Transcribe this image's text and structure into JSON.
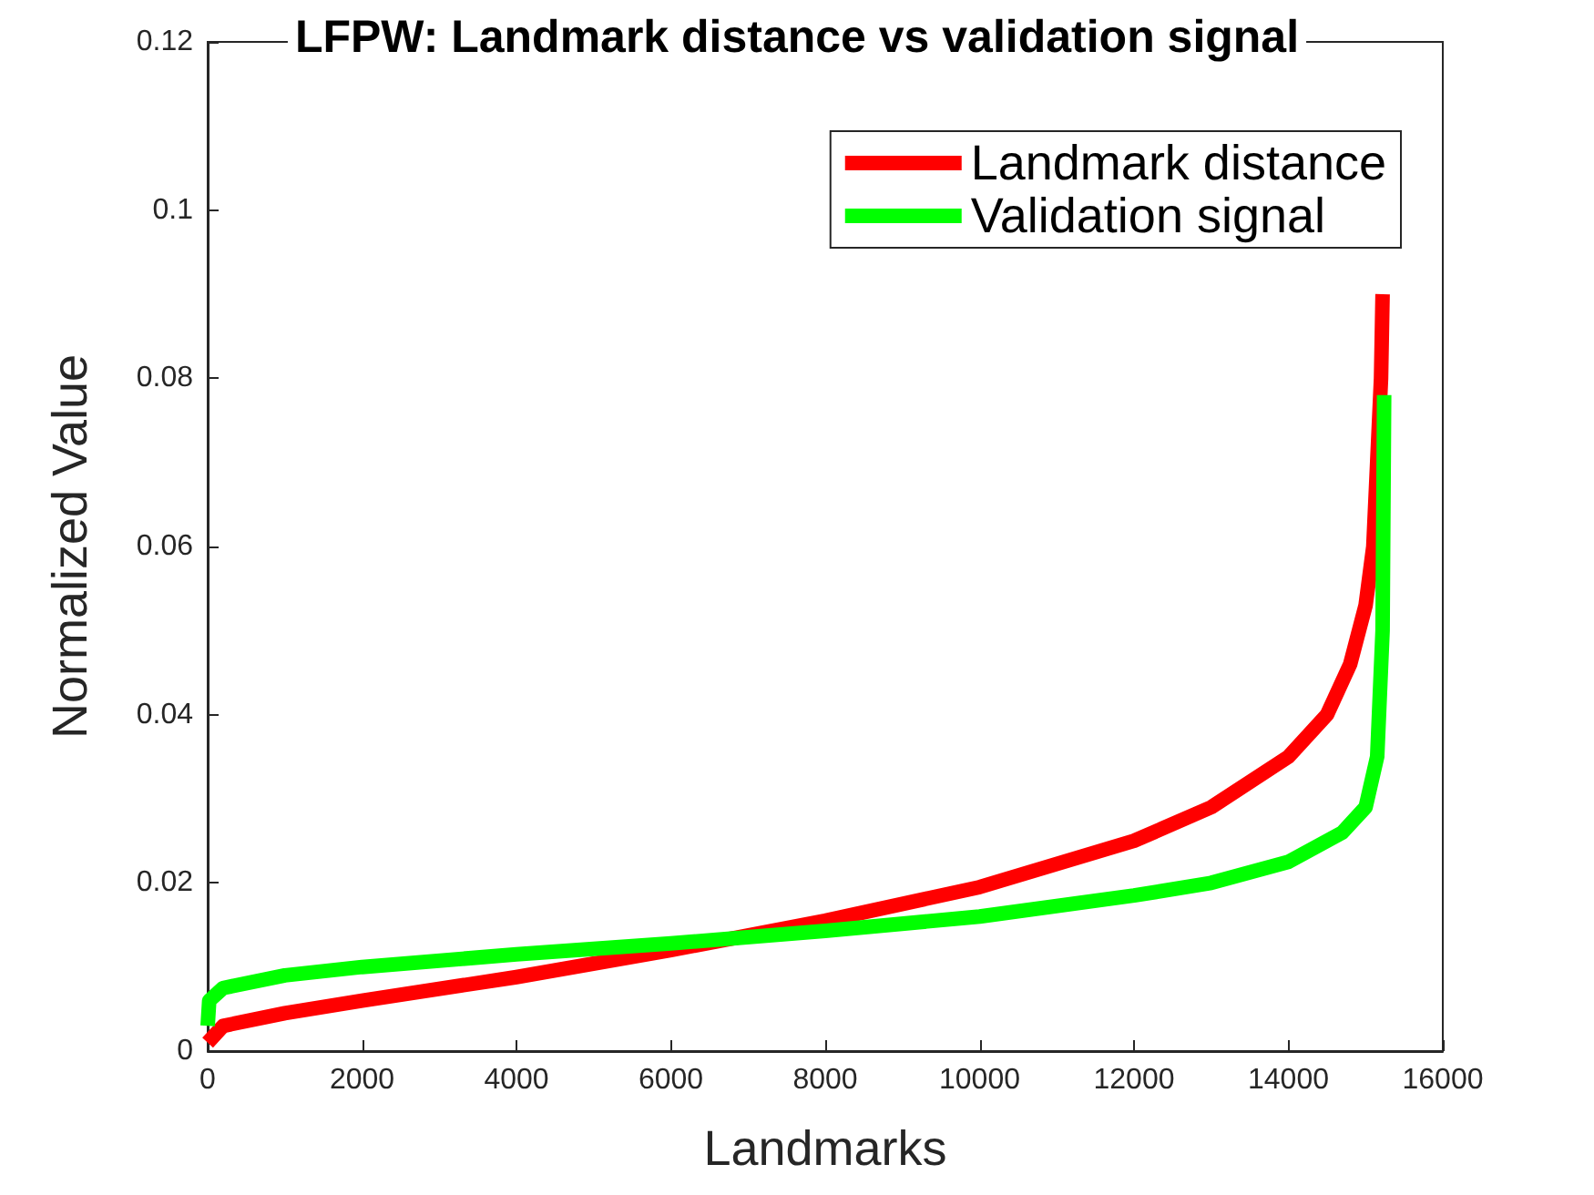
{
  "chart_data": {
    "type": "line",
    "title": "LFPW: Landmark distance vs validation signal",
    "xlabel": "Landmarks",
    "ylabel": "Normalized Value",
    "xlim": [
      0,
      16000
    ],
    "xticks": [
      0,
      2000,
      4000,
      6000,
      8000,
      10000,
      12000,
      14000,
      16000
    ],
    "ylim": [
      0,
      0.12
    ],
    "yticks": [
      0,
      0.02,
      0.04,
      0.06,
      0.08,
      0.1,
      0.12
    ],
    "grid": false,
    "legend": "top right",
    "marker": "none",
    "line_style": "solid",
    "series": [
      {
        "name": "Landmark distance",
        "color": "#ff0000",
        "x": [
          0,
          200,
          1000,
          2000,
          4000,
          6000,
          8000,
          10000,
          12000,
          13000,
          14000,
          14500,
          14800,
          15000,
          15100,
          15150,
          15200,
          15220
        ],
        "values": [
          0.001,
          0.003,
          0.0045,
          0.006,
          0.0088,
          0.012,
          0.0155,
          0.0195,
          0.025,
          0.029,
          0.035,
          0.04,
          0.046,
          0.053,
          0.06,
          0.07,
          0.08,
          0.09
        ]
      },
      {
        "name": "Validation signal",
        "color": "#00ff00",
        "x": [
          0,
          20,
          200,
          1000,
          2000,
          4000,
          6000,
          8000,
          10000,
          12000,
          13000,
          14000,
          14700,
          15000,
          15150,
          15220,
          15240
        ],
        "values": [
          0.003,
          0.006,
          0.0075,
          0.009,
          0.01,
          0.0115,
          0.0128,
          0.0143,
          0.016,
          0.0185,
          0.02,
          0.0225,
          0.026,
          0.029,
          0.035,
          0.05,
          0.078
        ]
      }
    ]
  }
}
